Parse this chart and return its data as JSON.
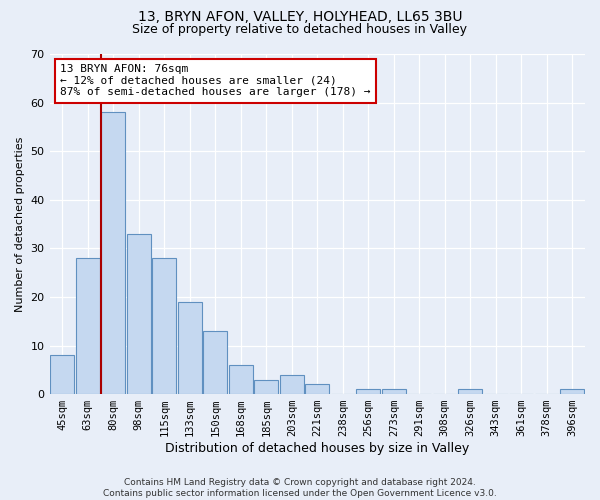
{
  "title1": "13, BRYN AFON, VALLEY, HOLYHEAD, LL65 3BU",
  "title2": "Size of property relative to detached houses in Valley",
  "xlabel": "Distribution of detached houses by size in Valley",
  "ylabel": "Number of detached properties",
  "bar_labels": [
    "45sqm",
    "63sqm",
    "80sqm",
    "98sqm",
    "115sqm",
    "133sqm",
    "150sqm",
    "168sqm",
    "185sqm",
    "203sqm",
    "221sqm",
    "238sqm",
    "256sqm",
    "273sqm",
    "291sqm",
    "308sqm",
    "326sqm",
    "343sqm",
    "361sqm",
    "378sqm",
    "396sqm"
  ],
  "bar_values": [
    8,
    28,
    58,
    33,
    28,
    19,
    13,
    6,
    3,
    4,
    2,
    0,
    1,
    1,
    0,
    0,
    1,
    0,
    0,
    0,
    1
  ],
  "bar_color": "#c5d8f0",
  "bar_edge_color": "#6090c0",
  "vline_color": "#aa0000",
  "vline_x": 1.5,
  "annotation_text": "13 BRYN AFON: 76sqm\n← 12% of detached houses are smaller (24)\n87% of semi-detached houses are larger (178) →",
  "annotation_box_facecolor": "#ffffff",
  "annotation_box_edgecolor": "#cc0000",
  "ylim": [
    0,
    70
  ],
  "yticks": [
    0,
    10,
    20,
    30,
    40,
    50,
    60,
    70
  ],
  "footer": "Contains HM Land Registry data © Crown copyright and database right 2024.\nContains public sector information licensed under the Open Government Licence v3.0.",
  "bg_color": "#e8eef8",
  "plot_bg_color": "#e8eef8",
  "grid_color": "#ffffff",
  "title1_fontsize": 10,
  "title2_fontsize": 9
}
